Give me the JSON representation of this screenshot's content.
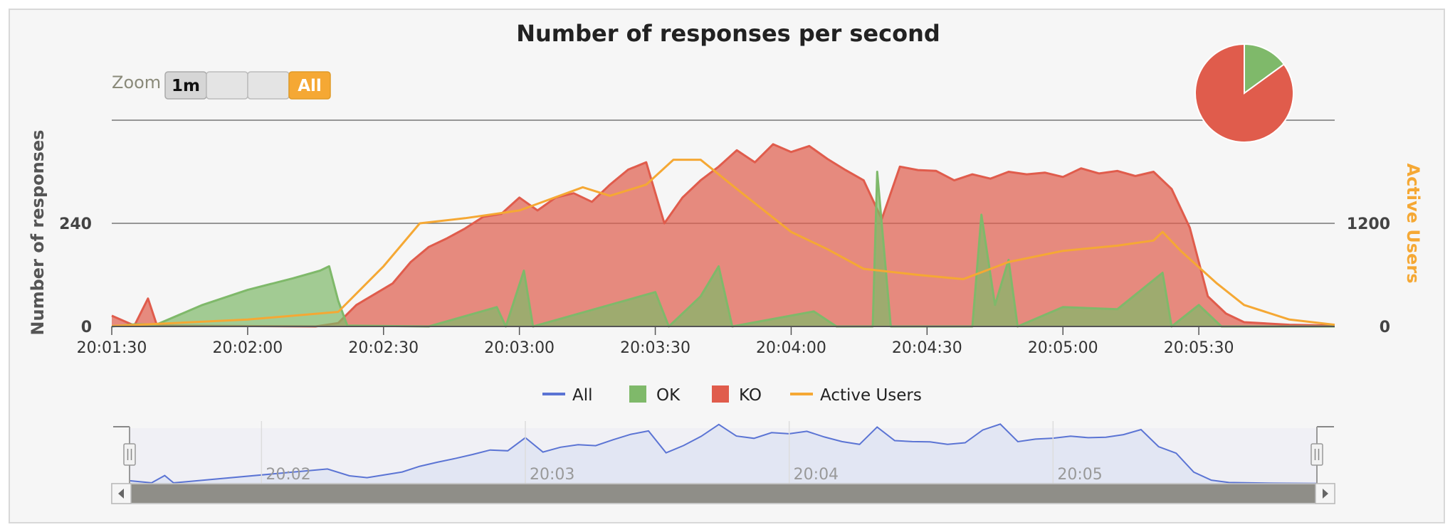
{
  "chart_data": {
    "type": "area",
    "title": "Number of responses per second",
    "ylabel": "Number of responses",
    "ylabel_right": "Active Users",
    "x_tick_labels": [
      "20:01:30",
      "20:02:00",
      "20:02:30",
      "20:03:00",
      "20:03:30",
      "20:04:00",
      "20:04:30",
      "20:05:00",
      "20:05:30"
    ],
    "y_left": {
      "min": 0,
      "max": 480,
      "ticks": [
        0,
        240
      ]
    },
    "y_right": {
      "min": 0,
      "max": 2400,
      "ticks": [
        0,
        1200
      ]
    },
    "x_range": [
      "20:01:30",
      "20:06:00"
    ],
    "legend": [
      {
        "name": "All",
        "color": "#5b74d4",
        "kind": "line"
      },
      {
        "name": "OK",
        "color": "#7fb96a",
        "kind": "box"
      },
      {
        "name": "KO",
        "color": "#e05c4c",
        "kind": "box"
      },
      {
        "name": "Active Users",
        "color": "#f5a834",
        "kind": "line"
      }
    ],
    "series": [
      {
        "name": "KO",
        "color": "#e05c4c",
        "axis": "left",
        "points": [
          [
            "20:01:30",
            25
          ],
          [
            "20:01:35",
            2
          ],
          [
            "20:01:38",
            65
          ],
          [
            "20:01:40",
            2
          ],
          [
            "20:02:15",
            0
          ],
          [
            "20:02:20",
            8
          ],
          [
            "20:02:24",
            50
          ],
          [
            "20:02:28",
            75
          ],
          [
            "20:02:32",
            100
          ],
          [
            "20:02:36",
            150
          ],
          [
            "20:02:40",
            185
          ],
          [
            "20:02:44",
            205
          ],
          [
            "20:02:48",
            228
          ],
          [
            "20:02:52",
            255
          ],
          [
            "20:02:56",
            262
          ],
          [
            "20:03:00",
            300
          ],
          [
            "20:03:04",
            270
          ],
          [
            "20:03:08",
            300
          ],
          [
            "20:03:12",
            310
          ],
          [
            "20:03:16",
            290
          ],
          [
            "20:03:20",
            330
          ],
          [
            "20:03:24",
            365
          ],
          [
            "20:03:28",
            382
          ],
          [
            "20:03:32",
            240
          ],
          [
            "20:03:36",
            300
          ],
          [
            "20:03:40",
            340
          ],
          [
            "20:03:44",
            372
          ],
          [
            "20:03:48",
            410
          ],
          [
            "20:03:52",
            382
          ],
          [
            "20:03:56",
            424
          ],
          [
            "20:04:00",
            406
          ],
          [
            "20:04:04",
            420
          ],
          [
            "20:04:08",
            390
          ],
          [
            "20:04:12",
            364
          ],
          [
            "20:04:16",
            340
          ],
          [
            "20:04:20",
            250
          ],
          [
            "20:04:24",
            372
          ],
          [
            "20:04:28",
            364
          ],
          [
            "20:04:32",
            362
          ],
          [
            "20:04:36",
            340
          ],
          [
            "20:04:40",
            354
          ],
          [
            "20:04:44",
            344
          ],
          [
            "20:04:48",
            360
          ],
          [
            "20:04:52",
            354
          ],
          [
            "20:04:56",
            358
          ],
          [
            "20:05:00",
            348
          ],
          [
            "20:05:04",
            368
          ],
          [
            "20:05:08",
            356
          ],
          [
            "20:05:12",
            362
          ],
          [
            "20:05:16",
            350
          ],
          [
            "20:05:20",
            360
          ],
          [
            "20:05:24",
            320
          ],
          [
            "20:05:28",
            230
          ],
          [
            "20:05:32",
            70
          ],
          [
            "20:05:36",
            30
          ],
          [
            "20:05:40",
            10
          ],
          [
            "20:05:50",
            4
          ],
          [
            "20:06:00",
            2
          ]
        ]
      },
      {
        "name": "OK",
        "color": "#7fb96a",
        "axis": "left",
        "points": [
          [
            "20:01:30",
            0
          ],
          [
            "20:01:35",
            5
          ],
          [
            "20:01:40",
            5
          ],
          [
            "20:01:50",
            50
          ],
          [
            "20:02:00",
            85
          ],
          [
            "20:02:10",
            112
          ],
          [
            "20:02:16",
            130
          ],
          [
            "20:02:18",
            140
          ],
          [
            "20:02:20",
            60
          ],
          [
            "20:02:22",
            2
          ],
          [
            "20:02:40",
            0
          ],
          [
            "20:02:55",
            45
          ],
          [
            "20:02:57",
            0
          ],
          [
            "20:03:01",
            130
          ],
          [
            "20:03:03",
            0
          ],
          [
            "20:03:30",
            80
          ],
          [
            "20:03:33",
            0
          ],
          [
            "20:03:40",
            70
          ],
          [
            "20:03:44",
            140
          ],
          [
            "20:03:47",
            0
          ],
          [
            "20:04:05",
            35
          ],
          [
            "20:04:10",
            0
          ],
          [
            "20:04:18",
            0
          ],
          [
            "20:04:19",
            360
          ],
          [
            "20:04:22",
            0
          ],
          [
            "20:04:40",
            0
          ],
          [
            "20:04:42",
            260
          ],
          [
            "20:04:45",
            50
          ],
          [
            "20:04:48",
            155
          ],
          [
            "20:04:50",
            0
          ],
          [
            "20:05:00",
            45
          ],
          [
            "20:05:12",
            40
          ],
          [
            "20:05:22",
            125
          ],
          [
            "20:05:24",
            0
          ],
          [
            "20:05:30",
            50
          ],
          [
            "20:05:35",
            0
          ],
          [
            "20:06:00",
            0
          ]
        ]
      },
      {
        "name": "Active Users",
        "color": "#f5a834",
        "axis": "right",
        "points": [
          [
            "20:01:30",
            5
          ],
          [
            "20:02:00",
            80
          ],
          [
            "20:02:20",
            170
          ],
          [
            "20:02:30",
            700
          ],
          [
            "20:02:38",
            1200
          ],
          [
            "20:02:48",
            1260
          ],
          [
            "20:03:00",
            1350
          ],
          [
            "20:03:14",
            1620
          ],
          [
            "20:03:20",
            1520
          ],
          [
            "20:03:28",
            1650
          ],
          [
            "20:03:34",
            1940
          ],
          [
            "20:03:40",
            1940
          ],
          [
            "20:03:48",
            1600
          ],
          [
            "20:04:00",
            1100
          ],
          [
            "20:04:08",
            900
          ],
          [
            "20:04:16",
            670
          ],
          [
            "20:04:28",
            600
          ],
          [
            "20:04:38",
            550
          ],
          [
            "20:04:48",
            750
          ],
          [
            "20:05:00",
            880
          ],
          [
            "20:05:12",
            940
          ],
          [
            "20:05:20",
            1000
          ],
          [
            "20:05:22",
            1100
          ],
          [
            "20:05:26",
            880
          ],
          [
            "20:05:34",
            500
          ],
          [
            "20:05:40",
            250
          ],
          [
            "20:05:50",
            80
          ],
          [
            "20:06:00",
            20
          ]
        ]
      }
    ],
    "navigator": {
      "labels": [
        "20:02",
        "20:03",
        "20:04",
        "20:05"
      ],
      "series_name": "All",
      "color": "#5b74d4"
    },
    "pie": {
      "slices": [
        {
          "name": "OK",
          "value": 15,
          "color": "#7fb96a"
        },
        {
          "name": "KO",
          "value": 85,
          "color": "#e05c4c"
        }
      ]
    }
  },
  "zoom": {
    "label": "Zoom",
    "buttons": [
      {
        "label": "1m",
        "state": "normal"
      },
      {
        "label": "",
        "state": "disabled"
      },
      {
        "label": "",
        "state": "disabled"
      },
      {
        "label": "All",
        "state": "selected"
      }
    ]
  }
}
